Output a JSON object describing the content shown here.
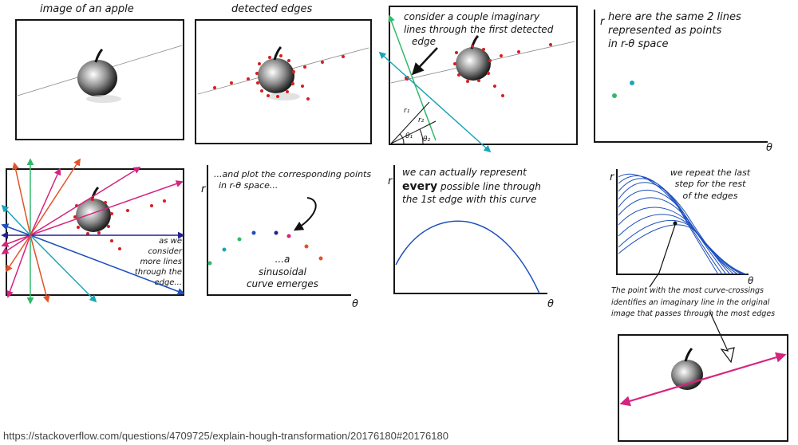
{
  "captions": {
    "p1": "image of an apple",
    "p2": "detected edges",
    "p3": [
      "consider a couple imaginary",
      "lines through the first detected",
      "edge"
    ],
    "p4": [
      "here are the same 2 lines",
      "represented as points",
      "in r-θ space"
    ],
    "p5": [
      "as we",
      "consider",
      "more lines",
      "through the",
      "edge..."
    ],
    "p6_top": [
      "...and plot the corresponding points",
      "in r-θ space..."
    ],
    "p6_bottom": [
      "...a",
      "sinusoidal",
      "curve emerges"
    ],
    "p7_pre": "we can actually represent",
    "p7_bold": "every",
    "p7_post": " possible line through",
    "p7_line3": "the 1st edge with this curve",
    "p8": [
      "we repeat the last",
      "step for the rest",
      "of the edges"
    ],
    "bottom": [
      "The point with the most curve-crossings",
      "identifies an imaginary line in the original",
      "image that passes through the most edges"
    ]
  },
  "axes": {
    "r": "r",
    "theta": "θ"
  },
  "angle_labels": {
    "r1": "r₁",
    "r2": "r₂",
    "t1": "θ₁",
    "t2": "θ₂"
  },
  "footer_url": "https://stackoverflow.com/questions/4709725/explain-hough-transformation/20176180#20176180",
  "colors": {
    "ink": "#151515",
    "edge_dot": "#d81e1e",
    "green": "#33b86a",
    "teal": "#1aa5b8",
    "blue": "#1d4fbf",
    "magenta": "#d6237e",
    "navy": "#21228f",
    "orange": "#e2532a",
    "purple": "#7b3fc8"
  }
}
